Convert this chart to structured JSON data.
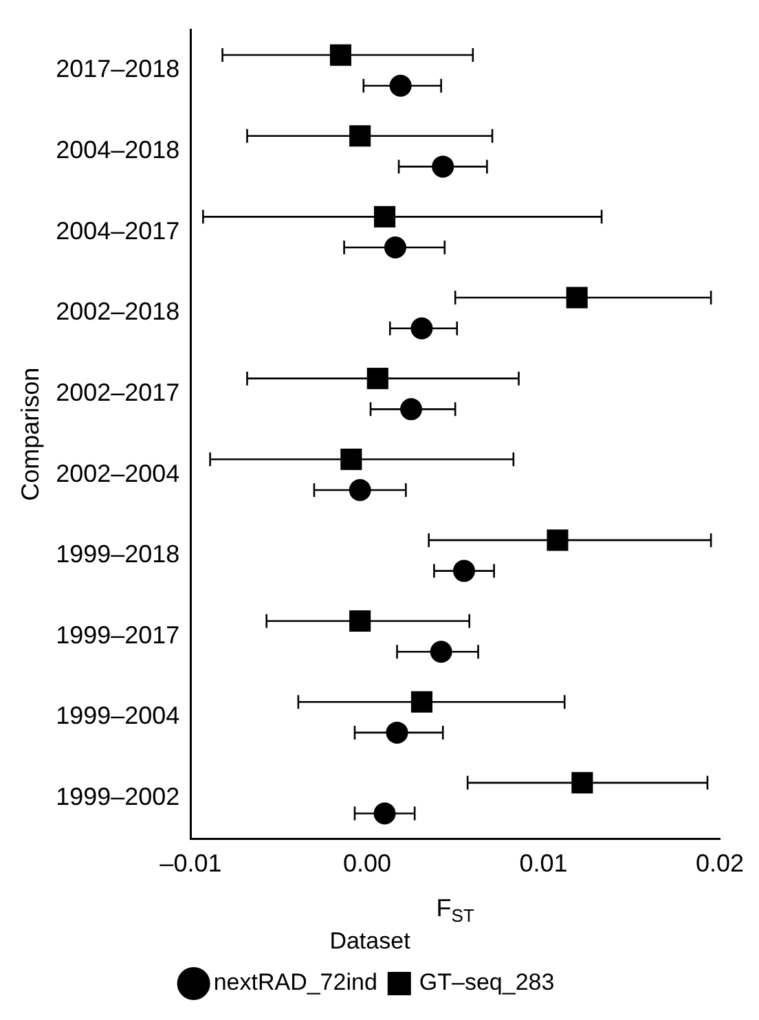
{
  "chart_data": {
    "type": "scatter",
    "orientation": "horizontal",
    "xlabel": "F$_{ST}$",
    "ylabel": "Comparison",
    "legend_title": "Dataset",
    "legend": "bottom",
    "grid": false,
    "categories": [
      "2017–2018",
      "2004–2018",
      "2004–2017",
      "2002–2018",
      "2002–2017",
      "2002–2004",
      "1999–2018",
      "1999–2017",
      "1999–2004",
      "1999–2002"
    ],
    "xlim": [
      -0.01,
      0.02
    ],
    "xticks": [
      {
        "value": -0.01,
        "label": "–0.01"
      },
      {
        "value": 0,
        "label": "0.00"
      },
      0.01,
      0.02
    ],
    "series": [
      {
        "name": "nextRAD_72ind",
        "color": "#000000",
        "marker": "circle",
        "values": [
          0.0019,
          0.0043,
          0.0016,
          0.0031,
          0.0025,
          -0.0004,
          0.0055,
          0.0042,
          0.0017,
          0.001
        ],
        "errors": [
          [
            -0.0002,
            0.0042
          ],
          [
            0.0018,
            0.0068
          ],
          [
            -0.0013,
            0.0044
          ],
          [
            0.0013,
            0.0051
          ],
          [
            0.0002,
            0.005
          ],
          [
            -0.003,
            0.0022
          ],
          [
            0.0038,
            0.0072
          ],
          [
            0.0017,
            0.0063
          ],
          [
            -0.0007,
            0.0043
          ],
          [
            -0.0007,
            0.0027
          ]
        ]
      },
      {
        "name": "GT–seq_283",
        "color": "#000000",
        "marker": "square",
        "values": [
          -0.0015,
          -0.0004,
          0.001,
          0.0119,
          0.0006,
          -0.0009,
          0.0108,
          -0.0004,
          0.0031,
          0.0122
        ],
        "errors": [
          [
            -0.0082,
            0.006
          ],
          [
            -0.0068,
            0.0071
          ],
          [
            -0.0093,
            0.0133
          ],
          [
            0.005,
            0.0195
          ],
          [
            -0.0068,
            0.0086
          ],
          [
            -0.0089,
            0.0083
          ],
          [
            0.0035,
            0.0195
          ],
          [
            -0.0057,
            0.0058
          ],
          [
            -0.0039,
            0.0112
          ],
          [
            0.0057,
            0.0193
          ]
        ]
      }
    ]
  }
}
